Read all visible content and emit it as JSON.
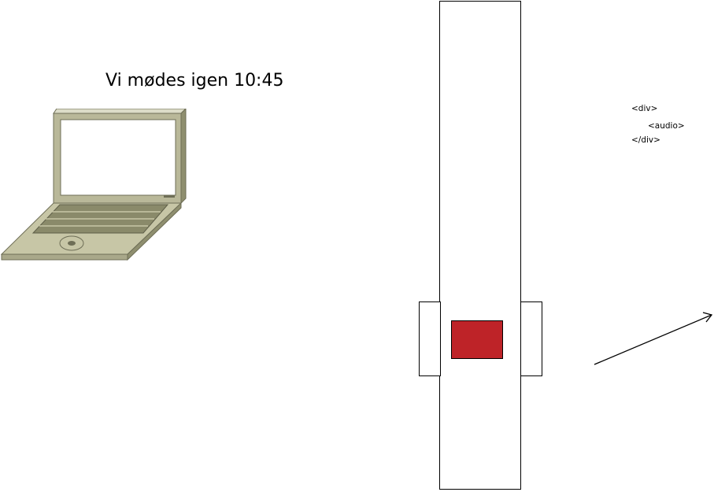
{
  "caption": "Vi mødes igen 10:45",
  "code_snippet": {
    "line1": "<div>",
    "line2": "<audio>",
    "line3": "</div>"
  },
  "colors": {
    "red_block": "#be2328",
    "laptop_body": "#c7c6a6",
    "laptop_dark": "#8f8f6f",
    "laptop_keys": "#8a8a6a"
  },
  "icons": {
    "laptop": "laptop-icon",
    "arrow": "arrow-icon"
  }
}
